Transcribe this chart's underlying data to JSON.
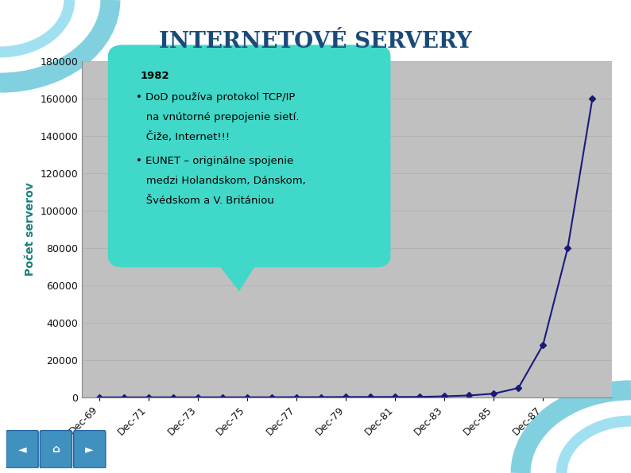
{
  "title": "INTERNETOVÉ SERVERY",
  "ylabel": "Počet serverov",
  "chart_bg": "#c0c0c0",
  "slide_bg": "#ffffff",
  "line_color": "#1a1a7a",
  "marker_color": "#1a1a7a",
  "title_color": "#1a4a7a",
  "ylabel_color": "#1a8080",
  "annotation_bg": "#40d8c8",
  "annotation_text_color": "#000000",
  "x_labels": [
    "Dec-69",
    "Dec-71",
    "Dec-73",
    "Dec-75",
    "Dec-77",
    "Dec-79",
    "Dec-81",
    "Dec-83",
    "Dec-85",
    "Dec-87"
  ],
  "x_values": [
    1969,
    1970,
    1971,
    1972,
    1973,
    1974,
    1975,
    1976,
    1977,
    1978,
    1979,
    1980,
    1981,
    1982,
    1983,
    1984,
    1985,
    1986,
    1987,
    1988,
    1989
  ],
  "y_values": [
    4,
    7,
    23,
    31,
    35,
    46,
    57,
    63,
    111,
    122,
    188,
    200,
    213,
    235,
    562,
    1000,
    1961,
    5000,
    28174,
    80000,
    160000
  ],
  "ylim": [
    0,
    180000
  ],
  "yticks": [
    0,
    20000,
    40000,
    60000,
    80000,
    100000,
    120000,
    140000,
    160000,
    180000
  ],
  "annotation_title": "1982",
  "annotation_line1": "• DoD používa protokol TCP/IP",
  "annotation_line2": "   na vnútorné prepojenie sietí.",
  "annotation_line3": "   Čiže, Internet!!!",
  "annotation_line4": "• EUNET – originálne spojenie",
  "annotation_line5": "   medzi Holandskom, Dánskom,",
  "annotation_line6": "   Švédskom a V. Britániou",
  "slide_corner_color": "#70c8d8"
}
